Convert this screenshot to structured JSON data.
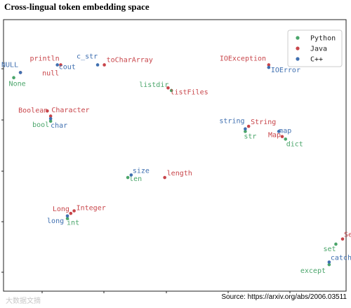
{
  "title": "Cross-lingual token embedding space",
  "source": "Source: https://arxiv.org/abs/2006.03511",
  "watermark": "大数据文摘",
  "colors": {
    "Python": "#4aa56a",
    "Java": "#c8454a",
    "C++": "#3f6fb0"
  },
  "chart_data": {
    "type": "scatter",
    "title": "",
    "xlabel": "",
    "ylabel": "",
    "xlim": [
      0,
      100
    ],
    "ylim": [
      0,
      100
    ],
    "grid": false,
    "legend": "top-right",
    "series": [
      {
        "name": "Python",
        "points": [
          {
            "label": "None",
            "x": 2,
            "y": 82
          },
          {
            "label": "listdir",
            "x": 49,
            "y": 77
          },
          {
            "label": "bool",
            "x": 13,
            "y": 65
          },
          {
            "label": "str",
            "x": 71,
            "y": 61
          },
          {
            "label": "dict",
            "x": 83,
            "y": 58
          },
          {
            "label": "len",
            "x": 36,
            "y": 43
          },
          {
            "label": "int",
            "x": 18,
            "y": 27
          },
          {
            "label": "set",
            "x": 98,
            "y": 17
          },
          {
            "label": "except",
            "x": 96,
            "y": 9
          }
        ]
      },
      {
        "name": "Java",
        "points": [
          {
            "label": "println",
            "x": 16,
            "y": 87
          },
          {
            "label": "null",
            "x": 4,
            "y": 84
          },
          {
            "label": "toCharArray",
            "x": 29,
            "y": 87
          },
          {
            "label": "IOException",
            "x": 78,
            "y": 87
          },
          {
            "label": "listFiles",
            "x": 48,
            "y": 78
          },
          {
            "label": "Boolean",
            "x": 13,
            "y": 67
          },
          {
            "label": "Character",
            "x": 12,
            "y": 69
          },
          {
            "label": "String",
            "x": 72,
            "y": 63
          },
          {
            "label": "Map",
            "x": 82,
            "y": 59
          },
          {
            "label": "length",
            "x": 47,
            "y": 43
          },
          {
            "label": "Long",
            "x": 19,
            "y": 29
          },
          {
            "label": "Integer",
            "x": 20,
            "y": 30
          },
          {
            "label": "Set",
            "x": 100,
            "y": 19
          }
        ]
      },
      {
        "name": "C++",
        "points": [
          {
            "label": "NULL",
            "x": 4,
            "y": 84
          },
          {
            "label": "cout",
            "x": 15,
            "y": 87
          },
          {
            "label": "c_str",
            "x": 27,
            "y": 87
          },
          {
            "label": "IOError",
            "x": 78,
            "y": 86
          },
          {
            "label": "char",
            "x": 13,
            "y": 66
          },
          {
            "label": "string",
            "x": 71,
            "y": 62
          },
          {
            "label": "map",
            "x": 81,
            "y": 61
          },
          {
            "label": "size",
            "x": 37,
            "y": 44
          },
          {
            "label": "long",
            "x": 18,
            "y": 28
          },
          {
            "label": "catch",
            "x": 96,
            "y": 10
          }
        ]
      }
    ]
  }
}
